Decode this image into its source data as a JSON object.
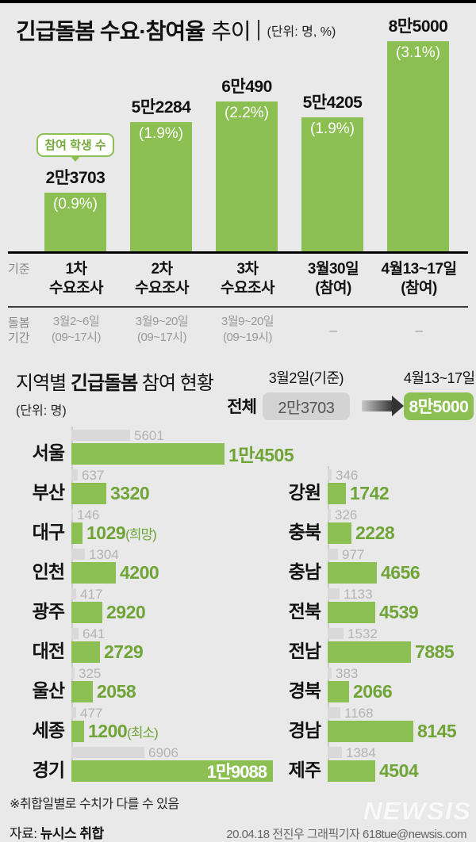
{
  "colors": {
    "green": "#8cbf52",
    "green_text": "#6fa437",
    "background": "#e9e9e9",
    "gray_bar": "#d9d9d9",
    "gray_text": "#b3b3b3"
  },
  "header": {
    "title_bold": "긴급돌봄 수요·참여율",
    "title_tail": "추이",
    "unit": "(단위: 명, %)"
  },
  "section2": {
    "title_pre": "지역별 ",
    "title_bold": "긴급돌봄",
    "title_post": " 참여 현황",
    "unit": "(단위: 명)",
    "date_before": "3월2일(기준)",
    "date_after": "4월13~17일",
    "total_label": "전체",
    "total_before": "2만3703",
    "total_after": "8만5000"
  },
  "footer": {
    "note": "※취합일별로 수치가 다를 수 있음",
    "source_label": "자료: ",
    "source": "뉴시스 취합",
    "credit": "20.04.18 전진우 그래픽기자 618tue@newsis.com",
    "watermark": "NEWSIS"
  },
  "chart_data": [
    {
      "type": "bar",
      "title": "긴급돌봄 수요·참여율 추이",
      "unit": "명, %",
      "callout": "참여 학생 수",
      "legend_position": "none",
      "grid": false,
      "ylim": [
        0,
        85000
      ],
      "categories": [
        [
          "1차",
          "수요조사"
        ],
        [
          "2차",
          "수요조사"
        ],
        [
          "3차",
          "수요조사"
        ],
        [
          "3월30일",
          "(참여)"
        ],
        [
          "4월13~17일",
          "(참여)"
        ]
      ],
      "values": [
        23703,
        52284,
        60490,
        54205,
        85000
      ],
      "value_labels": [
        "2만3703",
        "5만2284",
        "6만490",
        "5만4205",
        "8만5000"
      ],
      "pct_labels": [
        "(0.9%)",
        "(1.9%)",
        "(2.2%)",
        "(1.9%)",
        "(3.1%)"
      ],
      "axis_row_label": "기준",
      "period_row_label": [
        "돌봄",
        "기간"
      ],
      "periods": [
        [
          "3월2~6일",
          "(09~17시)"
        ],
        [
          "3월9~20일",
          "(09~17시)"
        ],
        [
          "3월9~20일",
          "(09~19시)"
        ],
        [
          "–"
        ],
        [
          "–"
        ]
      ]
    },
    {
      "type": "bar-horizontal-grouped",
      "title": "지역별 긴급돌봄 참여 현황",
      "unit": "명",
      "series_names": [
        "3월2일(기준)",
        "4월13~17일"
      ],
      "total": {
        "label": "전체",
        "before": "2만3703",
        "after": "8만5000"
      },
      "columns": [
        {
          "rows": [
            {
              "region": "서울",
              "before": 5601,
              "after": 14505,
              "after_label": "1만4505"
            },
            {
              "region": "부산",
              "before": 637,
              "after": 3320
            },
            {
              "region": "대구",
              "before": 146,
              "after": 1029,
              "suffix": "(희망)"
            },
            {
              "region": "인천",
              "before": 1304,
              "after": 4200
            },
            {
              "region": "광주",
              "before": 417,
              "after": 2920
            },
            {
              "region": "대전",
              "before": 641,
              "after": 2729
            },
            {
              "region": "울산",
              "before": 325,
              "after": 2058
            },
            {
              "region": "세종",
              "before": 477,
              "after": 1200,
              "suffix": "(최소)"
            },
            {
              "region": "경기",
              "before": 6906,
              "after": 19088,
              "after_label": "1만9088",
              "label_inside": true
            }
          ]
        },
        {
          "rows": [
            {
              "region": "강원",
              "before": 346,
              "after": 1742
            },
            {
              "region": "충북",
              "before": 326,
              "after": 2228
            },
            {
              "region": "충남",
              "before": 977,
              "after": 4656
            },
            {
              "region": "전북",
              "before": 1133,
              "after": 4539
            },
            {
              "region": "전남",
              "before": 1532,
              "after": 7885
            },
            {
              "region": "경북",
              "before": 383,
              "after": 2066
            },
            {
              "region": "경남",
              "before": 1168,
              "after": 8145
            },
            {
              "region": "제주",
              "before": 1384,
              "after": 4504
            }
          ]
        }
      ]
    }
  ]
}
